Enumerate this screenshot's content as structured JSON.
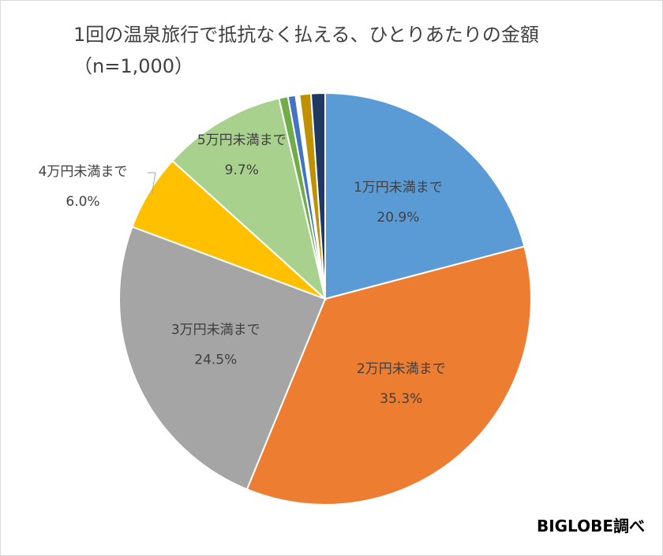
{
  "chart_data": {
    "type": "pie",
    "title": "1回の温泉旅行で抵抗なく払える、ひとりあたりの金額",
    "subtitle": "（n=1,000）",
    "credit": "BIGLOBE調べ",
    "slices": [
      {
        "label": "1万円未満まで",
        "value": 20.9,
        "display": "20.9%",
        "color": "#5b9bd5",
        "show_label": true
      },
      {
        "label": "2万円未満まで",
        "value": 35.3,
        "display": "35.3%",
        "color": "#ed7d31",
        "show_label": true
      },
      {
        "label": "3万円未満まで",
        "value": 24.5,
        "display": "24.5%",
        "color": "#a5a5a5",
        "show_label": true
      },
      {
        "label": "4万円未満まで",
        "value": 6.0,
        "display": "6.0%",
        "color": "#ffc000",
        "show_label": true
      },
      {
        "label": "5万円未満まで",
        "value": 9.7,
        "display": "9.7%",
        "color": "#a9d18e",
        "show_label": true
      },
      {
        "label": "",
        "value": 0.7,
        "display": "",
        "color": "#70ad47",
        "show_label": false
      },
      {
        "label": "",
        "value": 0.6,
        "display": "",
        "color": "#4472c4",
        "show_label": false
      },
      {
        "label": "",
        "value": 0.3,
        "display": "",
        "color": "#ffffff",
        "show_label": false
      },
      {
        "label": "",
        "value": 0.9,
        "display": "",
        "color": "#bf9000",
        "show_label": false
      },
      {
        "label": "",
        "value": 1.1,
        "display": "",
        "color": "#1f3864",
        "show_label": false
      }
    ]
  }
}
